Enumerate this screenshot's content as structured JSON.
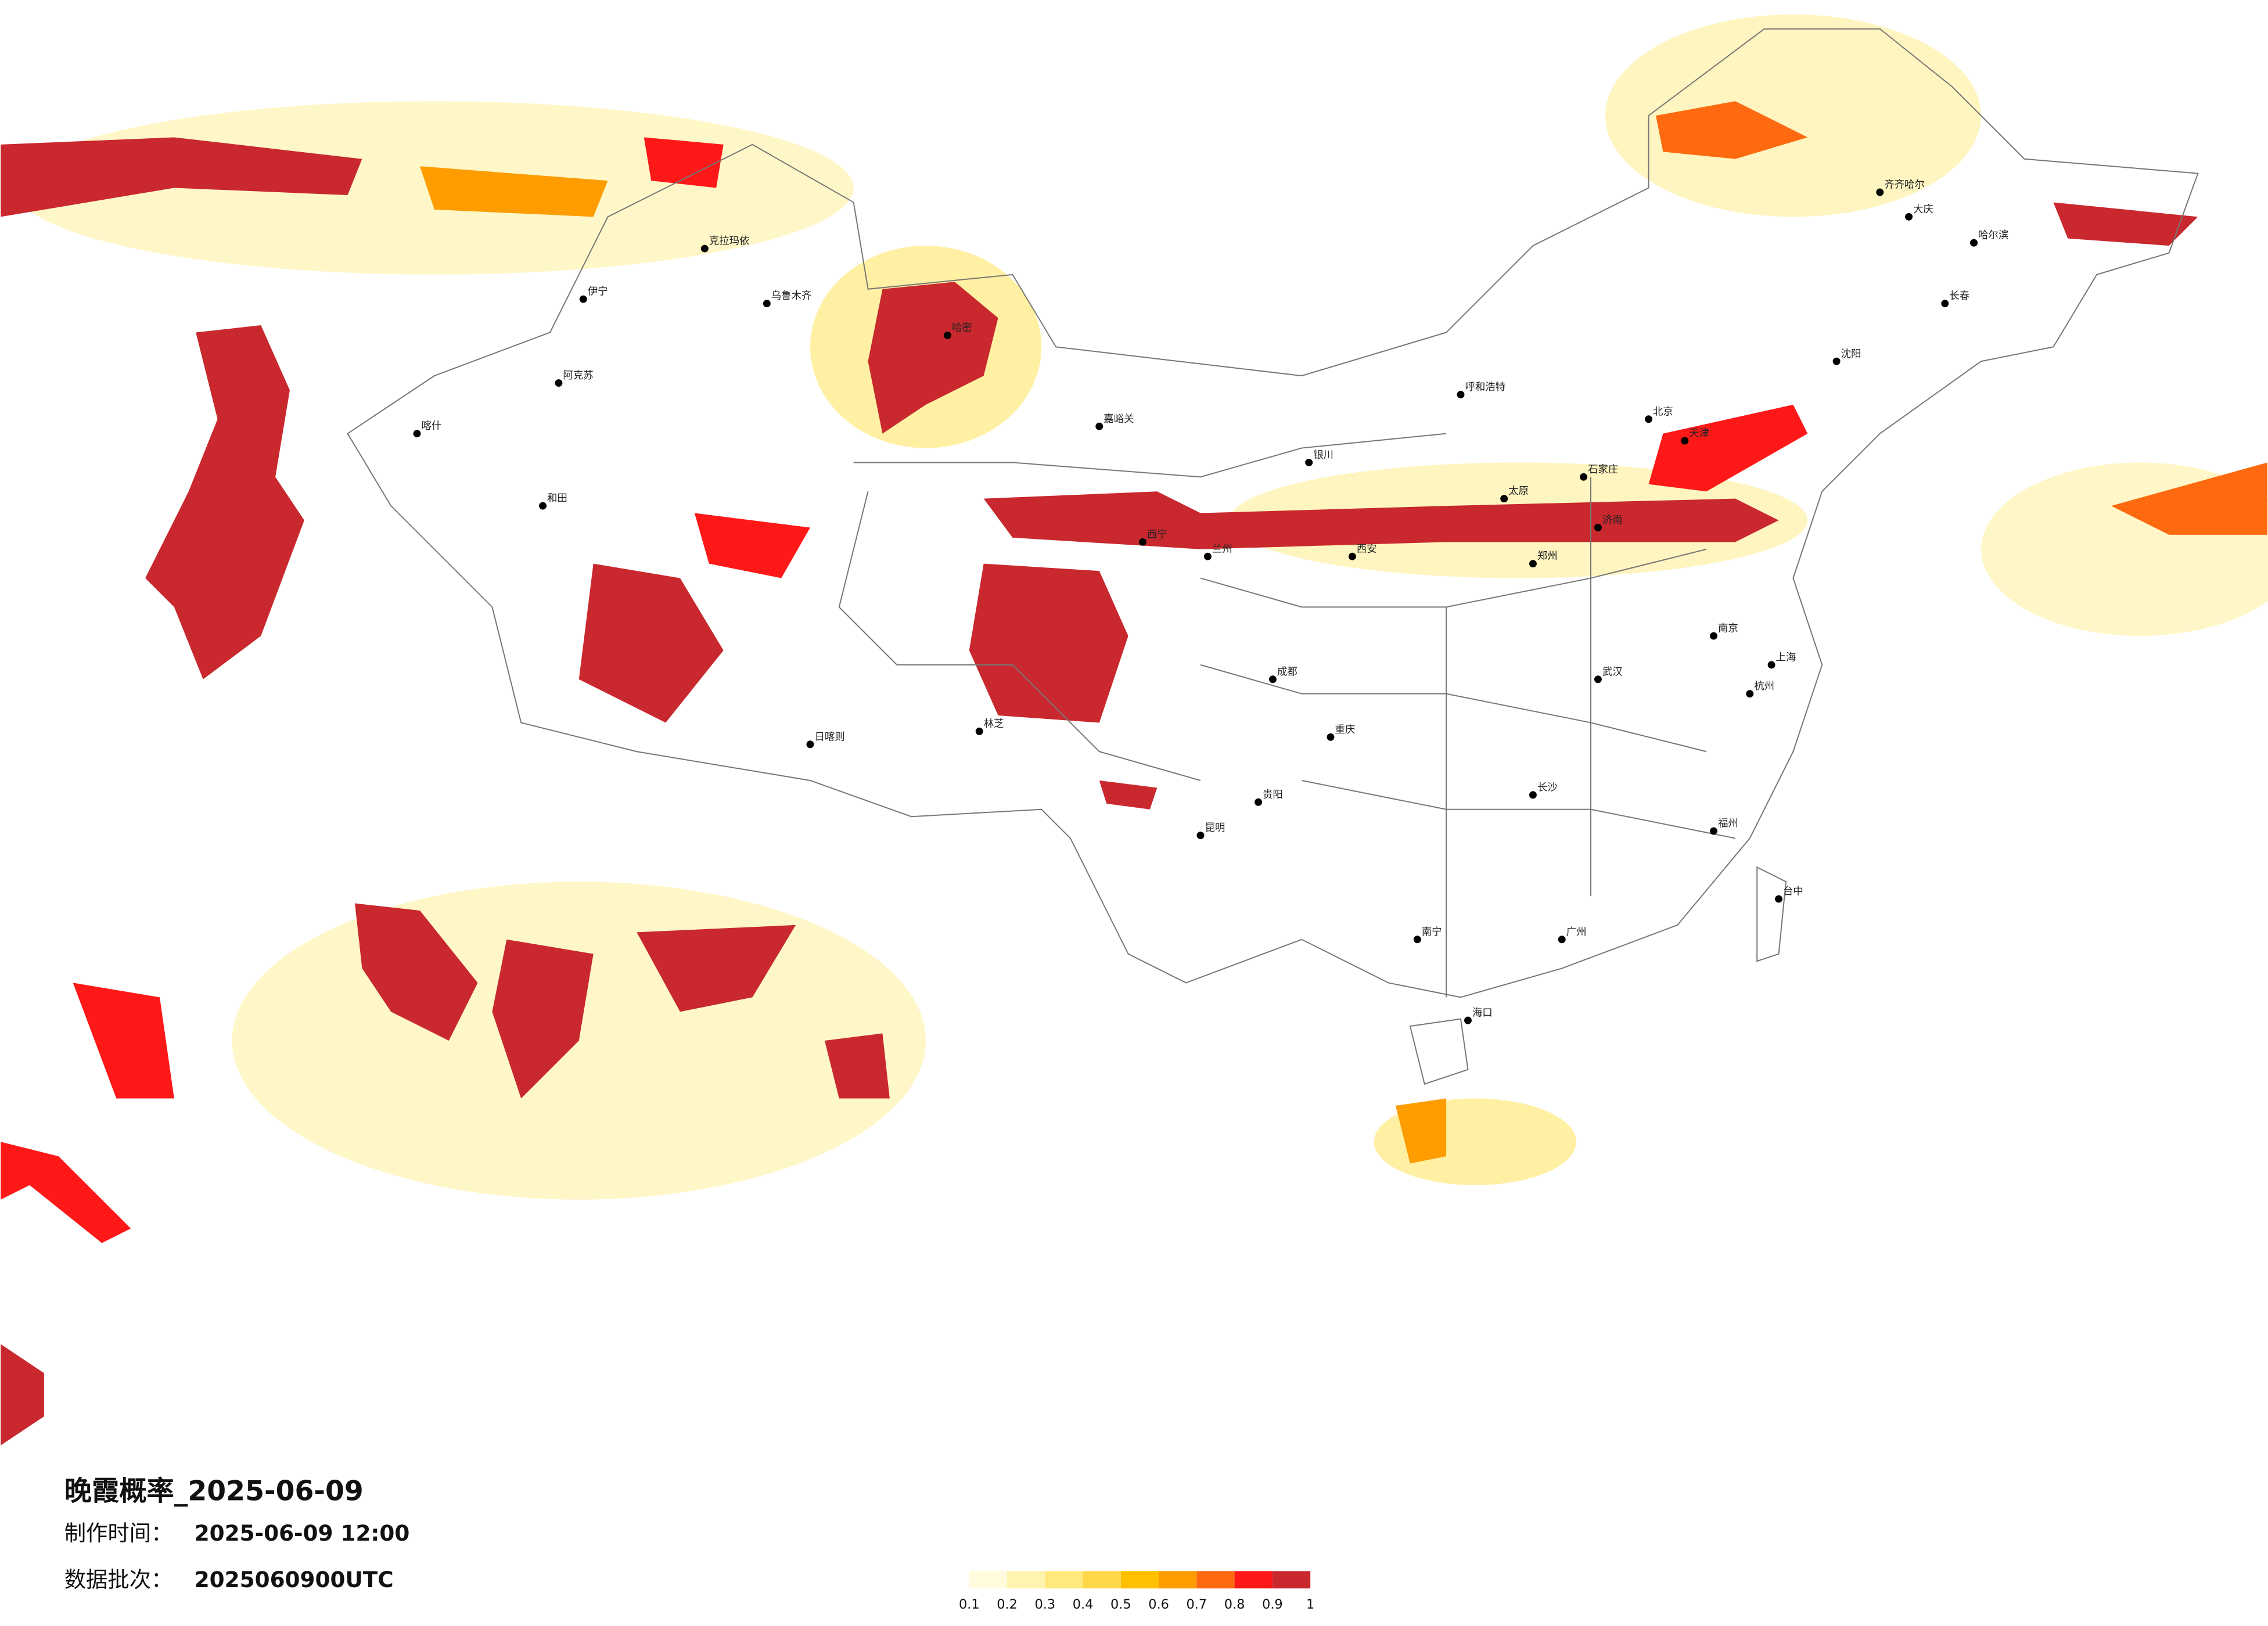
{
  "title": "晚霞概率_2025-06-09",
  "made_label": "制作时间：",
  "made_time": "2025-06-09 12:00",
  "batch_label": "数据批次：",
  "batch": "2025060900UTC",
  "legend": {
    "labels": [
      "0.1",
      "0.2",
      "0.3",
      "0.4",
      "0.5",
      "0.6",
      "0.7",
      "0.8",
      "0.9",
      "1"
    ],
    "colors": [
      "#fffbdc",
      "#fff3b0",
      "#ffe97c",
      "#ffd84a",
      "#ffc000",
      "#ff9c00",
      "#ff6a10",
      "#ff1818",
      "#c8282e"
    ]
  },
  "cities": [
    "伊宁",
    "克拉玛依",
    "乌鲁木齐",
    "阿克苏",
    "喀什",
    "和田",
    "日喀则",
    "林芝",
    "哈密",
    "嘉峪关",
    "西宁",
    "兰州",
    "银川",
    "呼和浩特",
    "北京",
    "天津",
    "石家庄",
    "太原",
    "济南",
    "郑州",
    "西安",
    "成都",
    "重庆",
    "昆明",
    "贵阳",
    "南宁",
    "长沙",
    "武汉",
    "南京",
    "上海",
    "杭州",
    "福州",
    "广州",
    "海口",
    "台中",
    "长春",
    "哈尔滨",
    "齐齐哈尔",
    "沈阳",
    "大庆"
  ]
}
